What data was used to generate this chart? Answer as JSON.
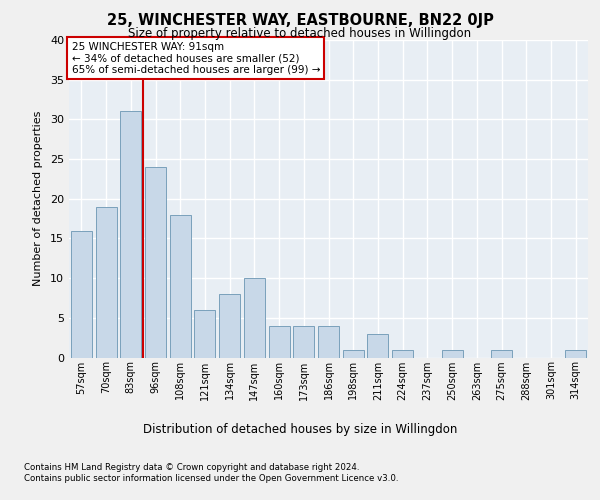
{
  "title": "25, WINCHESTER WAY, EASTBOURNE, BN22 0JP",
  "subtitle": "Size of property relative to detached houses in Willingdon",
  "xlabel": "Distribution of detached houses by size in Willingdon",
  "ylabel": "Number of detached properties",
  "categories": [
    "57sqm",
    "70sqm",
    "83sqm",
    "96sqm",
    "108sqm",
    "121sqm",
    "134sqm",
    "147sqm",
    "160sqm",
    "173sqm",
    "186sqm",
    "198sqm",
    "211sqm",
    "224sqm",
    "237sqm",
    "250sqm",
    "263sqm",
    "275sqm",
    "288sqm",
    "301sqm",
    "314sqm"
  ],
  "values": [
    16,
    19,
    31,
    24,
    18,
    6,
    8,
    10,
    4,
    4,
    4,
    1,
    3,
    1,
    0,
    1,
    0,
    1,
    0,
    0,
    1
  ],
  "bar_color": "#c8d8e8",
  "bar_edge_color": "#7aa0bb",
  "fig_background_color": "#f0f0f0",
  "axes_background_color": "#e8eef4",
  "grid_color": "#ffffff",
  "annotation_box_text_line1": "25 WINCHESTER WAY: 91sqm",
  "annotation_box_text_line2": "← 34% of detached houses are smaller (52)",
  "annotation_box_text_line3": "65% of semi-detached houses are larger (99) →",
  "annotation_box_facecolor": "#ffffff",
  "annotation_box_edgecolor": "#cc0000",
  "red_line_x": 2.5,
  "ylim": [
    0,
    40
  ],
  "yticks": [
    0,
    5,
    10,
    15,
    20,
    25,
    30,
    35,
    40
  ],
  "footer_line1": "Contains HM Land Registry data © Crown copyright and database right 2024.",
  "footer_line2": "Contains public sector information licensed under the Open Government Licence v3.0."
}
